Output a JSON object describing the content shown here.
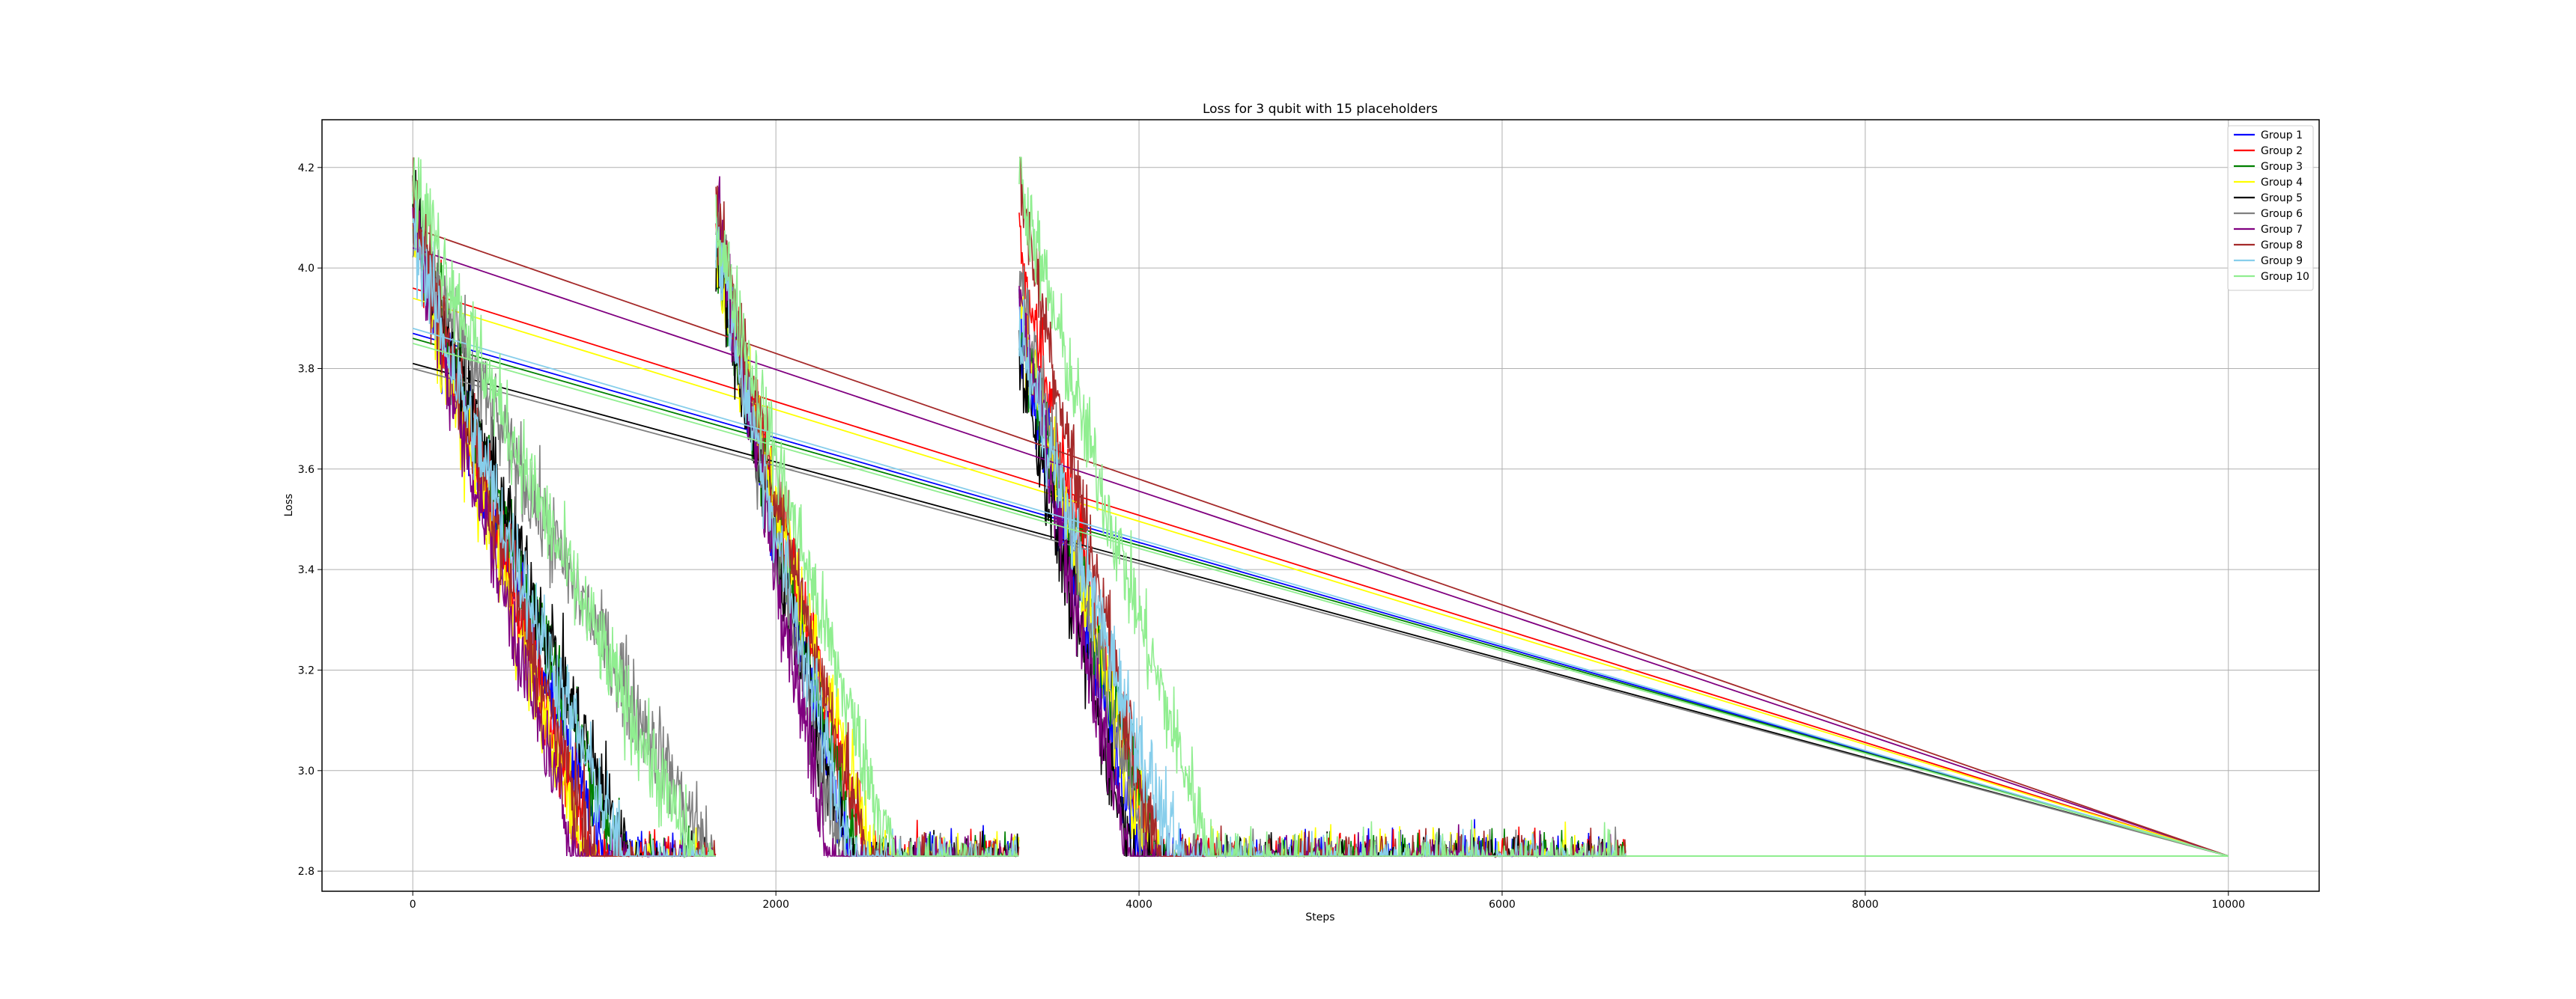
{
  "chart_data": {
    "type": "line",
    "title": "Loss for 3 qubit with 15 placeholders",
    "xlabel": "Steps",
    "ylabel": "Loss",
    "xlim": [
      -500,
      10500
    ],
    "ylim": [
      2.76,
      4.295
    ],
    "xticks": [
      0,
      2000,
      4000,
      6000,
      8000,
      10000
    ],
    "yticks": [
      2.8,
      3.0,
      3.2,
      3.4,
      3.6,
      3.8,
      4.0,
      4.2
    ],
    "xtick_labels": [
      "0",
      "2000",
      "4000",
      "6000",
      "8000",
      "10000"
    ],
    "ytick_labels": [
      "2.8",
      "3.0",
      "3.2",
      "3.4",
      "3.6",
      "3.8",
      "4.0",
      "4.2"
    ],
    "grid": true,
    "legend_position": "top-right",
    "final_point": {
      "x": 10000,
      "y": 2.83
    },
    "series": [
      {
        "name": "Group 1",
        "color": "#0000ff",
        "segments": [
          {
            "x0": 0,
            "y0": 4.1,
            "x1": 1060,
            "y1": 2.83
          },
          {
            "x0": 1670,
            "y0": 4.08,
            "x1": 2400,
            "y1": 2.83
          },
          {
            "x0": 3340,
            "y0": 3.92,
            "x1": 4020,
            "y1": 2.83
          }
        ],
        "jump": {
          "x0": 0,
          "y0": 3.87,
          "x1": 10000,
          "y1": 2.83
        }
      },
      {
        "name": "Group 2",
        "color": "#ff0000",
        "segments": [
          {
            "x0": 0,
            "y0": 4.14,
            "x1": 980,
            "y1": 2.83
          },
          {
            "x0": 1670,
            "y0": 4.1,
            "x1": 2500,
            "y1": 2.83
          },
          {
            "x0": 3340,
            "y0": 4.06,
            "x1": 4080,
            "y1": 2.83
          }
        ],
        "jump": {
          "x0": 0,
          "y0": 3.96,
          "x1": 10000,
          "y1": 2.83
        }
      },
      {
        "name": "Group 3",
        "color": "#008000",
        "segments": [
          {
            "x0": 0,
            "y0": 4.12,
            "x1": 1150,
            "y1": 2.83
          },
          {
            "x0": 1670,
            "y0": 4.05,
            "x1": 2450,
            "y1": 2.83
          },
          {
            "x0": 3340,
            "y0": 3.9,
            "x1": 4100,
            "y1": 2.83
          }
        ],
        "jump": {
          "x0": 0,
          "y0": 3.86,
          "x1": 10000,
          "y1": 2.83
        }
      },
      {
        "name": "Group 4",
        "color": "#ffff00",
        "segments": [
          {
            "x0": 0,
            "y0": 4.08,
            "x1": 950,
            "y1": 2.83
          },
          {
            "x0": 1670,
            "y0": 4.02,
            "x1": 2550,
            "y1": 2.83
          },
          {
            "x0": 3340,
            "y0": 3.95,
            "x1": 4060,
            "y1": 2.83
          }
        ],
        "jump": {
          "x0": 0,
          "y0": 3.94,
          "x1": 10000,
          "y1": 2.83
        }
      },
      {
        "name": "Group 5",
        "color": "#000000",
        "segments": [
          {
            "x0": 0,
            "y0": 4.13,
            "x1": 1180,
            "y1": 2.83
          },
          {
            "x0": 1670,
            "y0": 4.06,
            "x1": 2380,
            "y1": 2.83
          },
          {
            "x0": 3340,
            "y0": 3.85,
            "x1": 3960,
            "y1": 2.83
          }
        ],
        "jump": {
          "x0": 0,
          "y0": 3.81,
          "x1": 10000,
          "y1": 2.83
        }
      },
      {
        "name": "Group 6",
        "color": "#808080",
        "segments": [
          {
            "x0": 0,
            "y0": 4.1,
            "x1": 1650,
            "y1": 2.83
          },
          {
            "x0": 1670,
            "y0": 4.12,
            "x1": 2350,
            "y1": 2.83
          },
          {
            "x0": 3340,
            "y0": 4.0,
            "x1": 4050,
            "y1": 2.83
          }
        ],
        "jump": {
          "x0": 0,
          "y0": 3.8,
          "x1": 10000,
          "y1": 2.83
        }
      },
      {
        "name": "Group 7",
        "color": "#800080",
        "segments": [
          {
            "x0": 0,
            "y0": 4.11,
            "x1": 900,
            "y1": 2.83
          },
          {
            "x0": 1670,
            "y0": 4.15,
            "x1": 2300,
            "y1": 2.83
          },
          {
            "x0": 3340,
            "y0": 3.95,
            "x1": 3950,
            "y1": 2.83
          }
        ],
        "jump": {
          "x0": 0,
          "y0": 4.04,
          "x1": 10000,
          "y1": 2.83
        }
      },
      {
        "name": "Group 8",
        "color": "#a52a2a",
        "segments": [
          {
            "x0": 0,
            "y0": 4.15,
            "x1": 1000,
            "y1": 2.83
          },
          {
            "x0": 1670,
            "y0": 4.13,
            "x1": 2500,
            "y1": 2.83
          },
          {
            "x0": 3340,
            "y0": 4.2,
            "x1": 4100,
            "y1": 2.83
          }
        ],
        "jump": {
          "x0": 0,
          "y0": 4.08,
          "x1": 10000,
          "y1": 2.83
        }
      },
      {
        "name": "Group 9",
        "color": "#87ceeb",
        "segments": [
          {
            "x0": 0,
            "y0": 4.09,
            "x1": 1150,
            "y1": 2.83
          },
          {
            "x0": 1670,
            "y0": 4.07,
            "x1": 2420,
            "y1": 2.83
          },
          {
            "x0": 3340,
            "y0": 3.88,
            "x1": 4200,
            "y1": 2.83
          }
        ],
        "jump": {
          "x0": 0,
          "y0": 3.88,
          "x1": 10000,
          "y1": 2.83
        }
      },
      {
        "name": "Group 10",
        "color": "#90ee90",
        "segments": [
          {
            "x0": 0,
            "y0": 4.2,
            "x1": 1550,
            "y1": 2.83
          },
          {
            "x0": 1670,
            "y0": 4.1,
            "x1": 2650,
            "y1": 2.83
          },
          {
            "x0": 3340,
            "y0": 4.2,
            "x1": 4400,
            "y1": 2.83
          }
        ],
        "jump": {
          "x0": 0,
          "y0": 3.85,
          "x1": 10000,
          "y1": 2.83
        }
      }
    ],
    "plateau_end_x": 6680
  }
}
